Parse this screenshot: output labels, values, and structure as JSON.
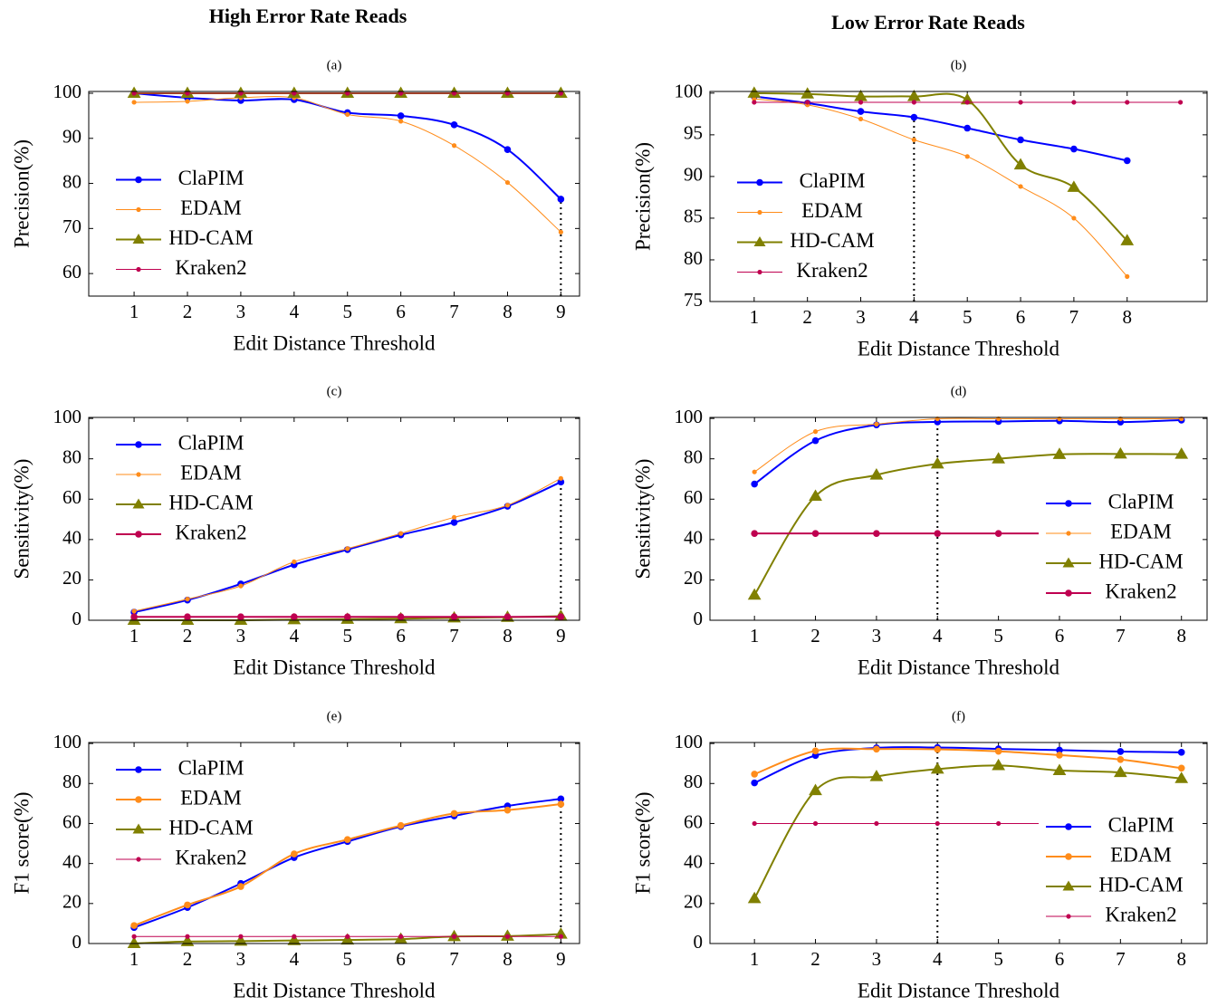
{
  "headers": [
    "High Error Rate Reads",
    "Low Error Rate Reads"
  ],
  "chart_data": [
    {
      "type": "line",
      "title": "(a)",
      "xlabel": "Edit Distance Threshold",
      "ylabel": "Precision(%)",
      "x": [
        1,
        2,
        3,
        4,
        5,
        6,
        7,
        8,
        9
      ],
      "xlim": [
        0.15,
        9.35
      ],
      "xticks": [
        1,
        2,
        3,
        4,
        5,
        6,
        7,
        8,
        9
      ],
      "ylim": [
        55,
        100.4
      ],
      "yticks": [
        60,
        70,
        80,
        90,
        100
      ],
      "legend": "center left",
      "vline": 9,
      "series": [
        {
          "name": "ClaPIM",
          "color": "#0000ff",
          "marker": "circle",
          "line_width": 2,
          "values": [
            100,
            99,
            98.4,
            98.6,
            95.7,
            95,
            93,
            87.5,
            76.5
          ]
        },
        {
          "name": "EDAM",
          "color": "#ff8c1a",
          "marker": "circle",
          "line_width": 1,
          "values": [
            98,
            98.2,
            99,
            99,
            95.3,
            93.8,
            88.4,
            80.2,
            69.2
          ]
        },
        {
          "name": "HD-CAM",
          "color": "#808000",
          "marker": "triangle",
          "line_width": 2,
          "values": [
            100,
            100,
            100,
            100,
            100,
            100,
            100,
            100,
            100
          ]
        },
        {
          "name": "Kraken2",
          "color": "#bf0050",
          "marker": "circle",
          "line_width": 1,
          "values": [
            100,
            100,
            100,
            100,
            100,
            100,
            100,
            100,
            100
          ]
        }
      ]
    },
    {
      "type": "line",
      "title": "(b)",
      "xlabel": "Edit Distance Threshold",
      "ylabel": "Precision(%)",
      "x": [
        1,
        2,
        3,
        4,
        5,
        6,
        7,
        8,
        9
      ],
      "xlim": [
        0.17,
        9.5
      ],
      "xticks": [
        1,
        2,
        3,
        4,
        5,
        6,
        7,
        8
      ],
      "ylim": [
        75,
        100.2
      ],
      "yticks": [
        75,
        80,
        85,
        90,
        95,
        100
      ],
      "legend": "center left",
      "vline": 4,
      "series": [
        {
          "name": "ClaPIM",
          "color": "#0000ff",
          "marker": "circle",
          "line_width": 2,
          "values": [
            99.6,
            98.8,
            97.8,
            97.1,
            95.8,
            94.4,
            93.3,
            91.9,
            null
          ]
        },
        {
          "name": "EDAM",
          "color": "#ff8c1a",
          "marker": "circle",
          "line_width": 1,
          "values": [
            99.3,
            98.6,
            96.9,
            94.4,
            92.4,
            88.8,
            85,
            78,
            null
          ]
        },
        {
          "name": "HD-CAM",
          "color": "#808000",
          "marker": "triangle",
          "line_width": 2,
          "values": [
            100,
            99.9,
            99.6,
            99.6,
            99.2,
            91.4,
            88.7,
            82.3,
            null
          ]
        },
        {
          "name": "Kraken2",
          "color": "#bf0050",
          "marker": "circle",
          "line_width": 1,
          "values": [
            98.9,
            98.9,
            98.9,
            98.9,
            98.9,
            98.9,
            98.9,
            98.9,
            98.9
          ]
        }
      ]
    },
    {
      "type": "line",
      "title": "(c)",
      "xlabel": "Edit Distance Threshold",
      "ylabel": "Sensitivity(%)",
      "x": [
        1,
        2,
        3,
        4,
        5,
        6,
        7,
        8,
        9
      ],
      "xlim": [
        0.15,
        9.35
      ],
      "xticks": [
        1,
        2,
        3,
        4,
        5,
        6,
        7,
        8,
        9
      ],
      "ylim": [
        0,
        100.5
      ],
      "yticks": [
        0,
        20,
        40,
        60,
        80,
        100
      ],
      "legend": "upper left",
      "vline": 9,
      "series": [
        {
          "name": "ClaPIM",
          "color": "#0000ff",
          "marker": "circle",
          "line_width": 2,
          "values": [
            4,
            10,
            18,
            27.5,
            35,
            42.3,
            48.5,
            56.5,
            68.5
          ]
        },
        {
          "name": "EDAM",
          "color": "#ff8c1a",
          "marker": "circle",
          "line_width": 1,
          "values": [
            4.5,
            10.5,
            17,
            29,
            35.5,
            43,
            51,
            57,
            70.3
          ]
        },
        {
          "name": "HD-CAM",
          "color": "#808000",
          "marker": "triangle",
          "line_width": 2,
          "values": [
            0,
            0,
            0,
            0.3,
            0.5,
            0.8,
            1.2,
            1.5,
            2
          ]
        },
        {
          "name": "Kraken2",
          "color": "#bf0050",
          "marker": "circle",
          "line_width": 2,
          "values": [
            1.7,
            1.7,
            1.7,
            1.7,
            1.7,
            1.7,
            1.7,
            1.7,
            1.7
          ]
        }
      ]
    },
    {
      "type": "line",
      "title": "(d)",
      "xlabel": "Edit Distance Threshold",
      "ylabel": "Sensitivity(%)",
      "x": [
        1,
        2,
        3,
        4,
        5,
        6,
        7,
        8
      ],
      "xlim": [
        0.27,
        8.42
      ],
      "xticks": [
        1,
        2,
        3,
        4,
        5,
        6,
        7,
        8
      ],
      "ylim": [
        0,
        100.5
      ],
      "yticks": [
        0,
        20,
        40,
        60,
        80,
        100
      ],
      "legend": "lower right",
      "vline": 4,
      "series": [
        {
          "name": "ClaPIM",
          "color": "#0000ff",
          "marker": "circle",
          "line_width": 2,
          "values": [
            67.5,
            89,
            96.8,
            98.3,
            98.5,
            98.8,
            98.2,
            99.2
          ]
        },
        {
          "name": "EDAM",
          "color": "#ff8c1a",
          "marker": "circle",
          "line_width": 1,
          "values": [
            73.5,
            93.5,
            97.2,
            99.8,
            99.8,
            99.8,
            99.8,
            99.8
          ]
        },
        {
          "name": "HD-CAM",
          "color": "#808000",
          "marker": "triangle",
          "line_width": 2,
          "values": [
            12.5,
            61.5,
            72,
            77.5,
            80,
            82.2,
            82.4,
            82.3
          ]
        },
        {
          "name": "Kraken2",
          "color": "#bf0050",
          "marker": "circle",
          "line_width": 2,
          "values": [
            43,
            43,
            43,
            43,
            43,
            43,
            43,
            43
          ]
        }
      ]
    },
    {
      "type": "line",
      "title": "(e)",
      "xlabel": "Edit Distance Threshold",
      "ylabel": "F1 score(%)",
      "x": [
        1,
        2,
        3,
        4,
        5,
        6,
        7,
        8,
        9
      ],
      "xlim": [
        0.15,
        9.35
      ],
      "xticks": [
        1,
        2,
        3,
        4,
        5,
        6,
        7,
        8,
        9
      ],
      "ylim": [
        0,
        100.5
      ],
      "yticks": [
        0,
        20,
        40,
        60,
        80,
        100
      ],
      "legend": "upper left",
      "vline": 9,
      "series": [
        {
          "name": "ClaPIM",
          "color": "#0000ff",
          "marker": "circle",
          "line_width": 2,
          "values": [
            8,
            18,
            30,
            43,
            51,
            58.5,
            63.8,
            68.8,
            72.3
          ]
        },
        {
          "name": "EDAM",
          "color": "#ff8c1a",
          "marker": "circle",
          "line_width": 2,
          "values": [
            9,
            19.3,
            28.5,
            44.8,
            52,
            59,
            65,
            66.7,
            69.7
          ]
        },
        {
          "name": "HD-CAM",
          "color": "#808000",
          "marker": "triangle",
          "line_width": 2,
          "values": [
            0,
            1,
            1.2,
            1.5,
            1.8,
            2.2,
            3.5,
            3.7,
            4.7
          ]
        },
        {
          "name": "Kraken2",
          "color": "#bf0050",
          "marker": "circle",
          "line_width": 1,
          "values": [
            3.5,
            3.5,
            3.5,
            3.5,
            3.5,
            3.5,
            3.5,
            3.5,
            3.5
          ]
        }
      ]
    },
    {
      "type": "line",
      "title": "(f)",
      "xlabel": "Edit Distance Threshold",
      "ylabel": "F1 score(%)",
      "x": [
        1,
        2,
        3,
        4,
        5,
        6,
        7,
        8
      ],
      "xlim": [
        0.27,
        8.42
      ],
      "xticks": [
        1,
        2,
        3,
        4,
        5,
        6,
        7,
        8
      ],
      "ylim": [
        0,
        100.5
      ],
      "yticks": [
        0,
        20,
        40,
        60,
        80,
        100
      ],
      "legend": "lower right",
      "vline": 4,
      "series": [
        {
          "name": "ClaPIM",
          "color": "#0000ff",
          "marker": "circle",
          "line_width": 2,
          "values": [
            80.3,
            94,
            97.8,
            98,
            97.3,
            96.7,
            96,
            95.6
          ]
        },
        {
          "name": "EDAM",
          "color": "#ff8c1a",
          "marker": "circle",
          "line_width": 2,
          "values": [
            84.7,
            96.3,
            97.2,
            97.1,
            96.1,
            94.2,
            92,
            87.7
          ]
        },
        {
          "name": "HD-CAM",
          "color": "#808000",
          "marker": "triangle",
          "line_width": 2,
          "values": [
            22.5,
            76.5,
            83.5,
            87.2,
            89,
            86.5,
            85.5,
            82.5
          ]
        },
        {
          "name": "Kraken2",
          "color": "#bf0050",
          "marker": "circle",
          "line_width": 1,
          "values": [
            60,
            60,
            60,
            60,
            60,
            60,
            60,
            60
          ]
        }
      ]
    }
  ]
}
